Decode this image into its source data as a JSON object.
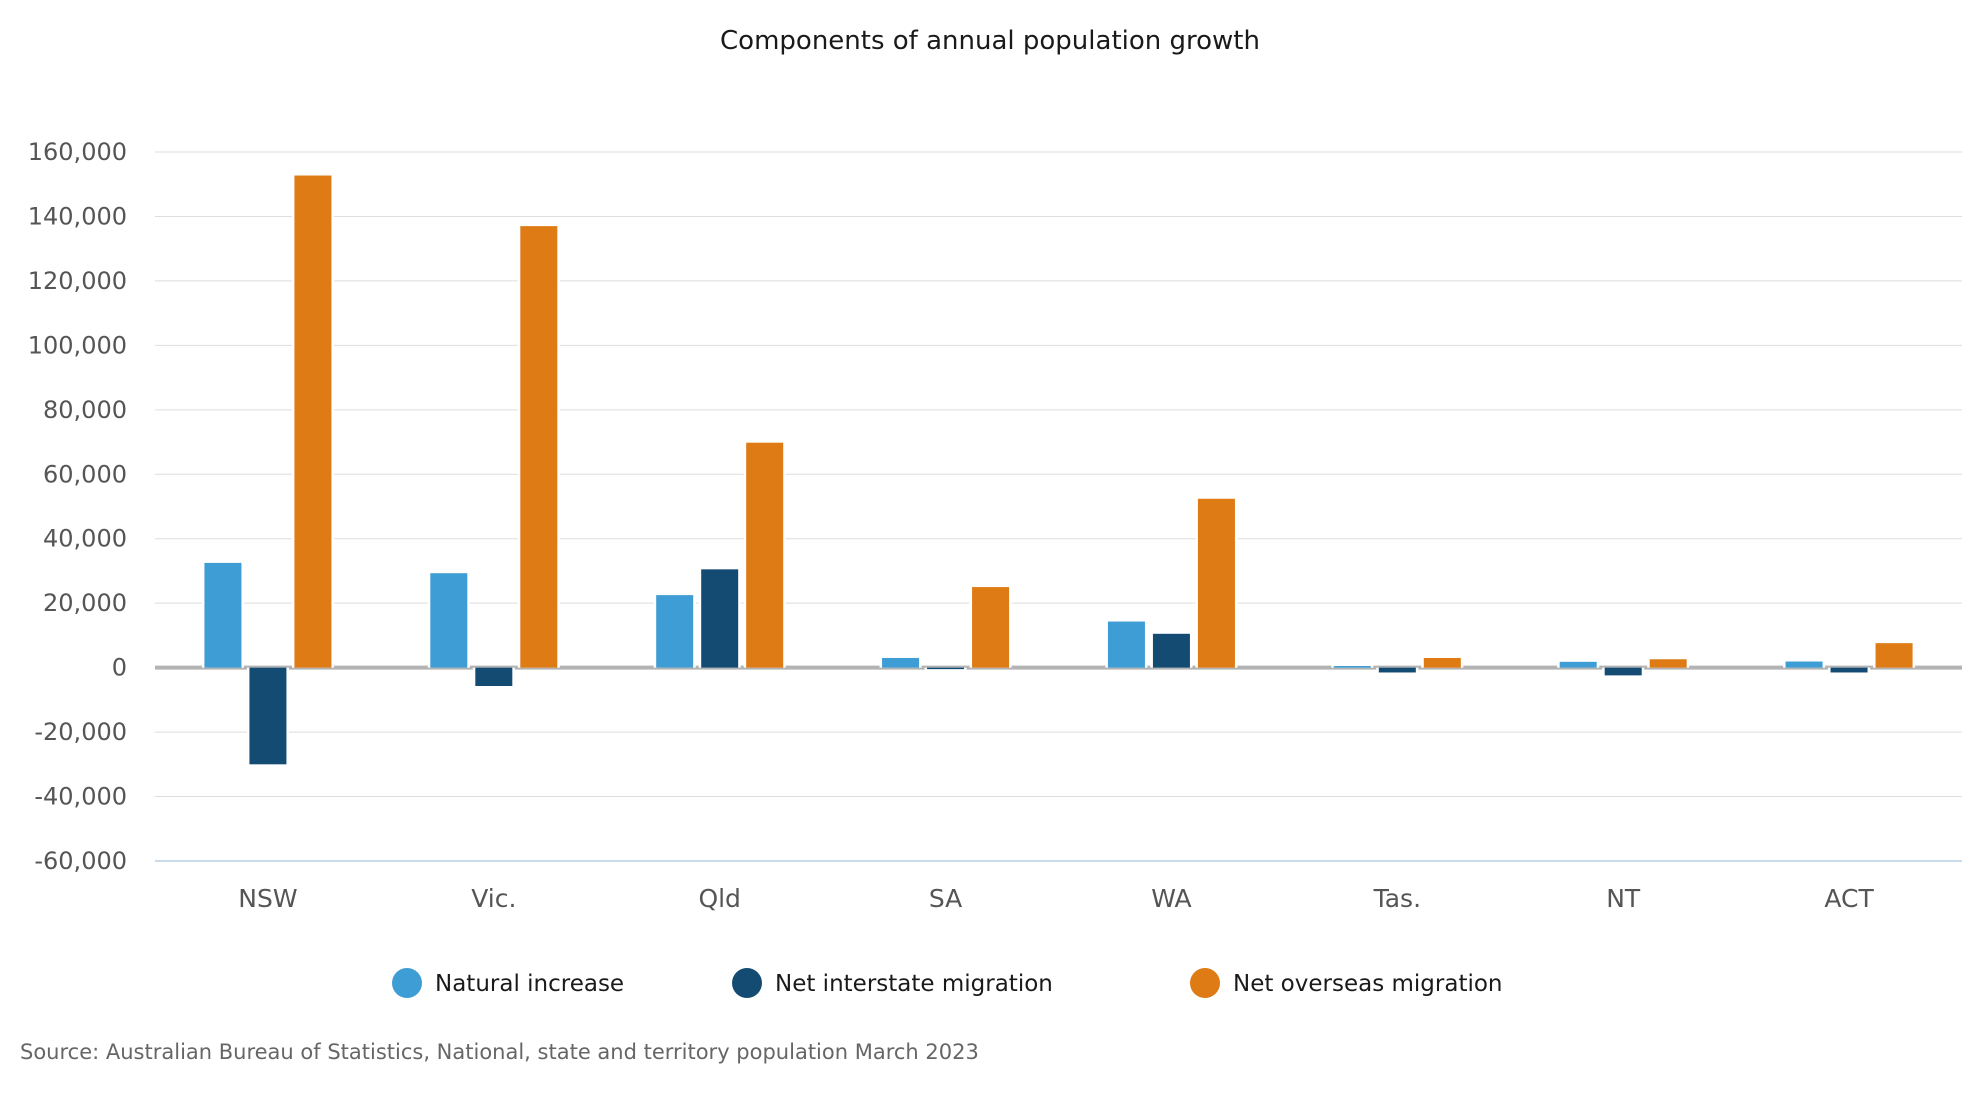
{
  "chart_data": {
    "type": "bar",
    "title": "Components of annual population growth",
    "xlabel": "",
    "ylabel": "",
    "categories": [
      "NSW",
      "Vic.",
      "Qld",
      "SA",
      "WA",
      "Tas.",
      "NT",
      "ACT"
    ],
    "series": [
      {
        "name": "Natural increase",
        "color": "#3e9dd4",
        "values": [
          32500,
          29300,
          22500,
          3000,
          14300,
          500,
          1800,
          1900
        ]
      },
      {
        "name": "Net interstate migration",
        "color": "#144b73",
        "values": [
          -30000,
          -5700,
          30500,
          -200,
          10500,
          -1500,
          -2400,
          -1500
        ]
      },
      {
        "name": "Net overseas migration",
        "color": "#de7b15",
        "values": [
          152700,
          137000,
          69800,
          25000,
          52400,
          3000,
          2600,
          7600
        ]
      }
    ],
    "ylim": [
      -60000,
      160000
    ],
    "yticks": [
      160000,
      140000,
      120000,
      100000,
      80000,
      60000,
      40000,
      20000,
      0,
      -20000,
      -40000,
      -60000
    ],
    "ytick_labels": [
      "160,000",
      "140,000",
      "120,000",
      "100,000",
      "80,000",
      "60,000",
      "40,000",
      "20,000",
      "0",
      "-20,000",
      "-40,000",
      "-60,000"
    ],
    "grid": true,
    "legend_position": "bottom"
  },
  "source": "Source: Australian Bureau of Statistics, National, state and territory population March 2023"
}
